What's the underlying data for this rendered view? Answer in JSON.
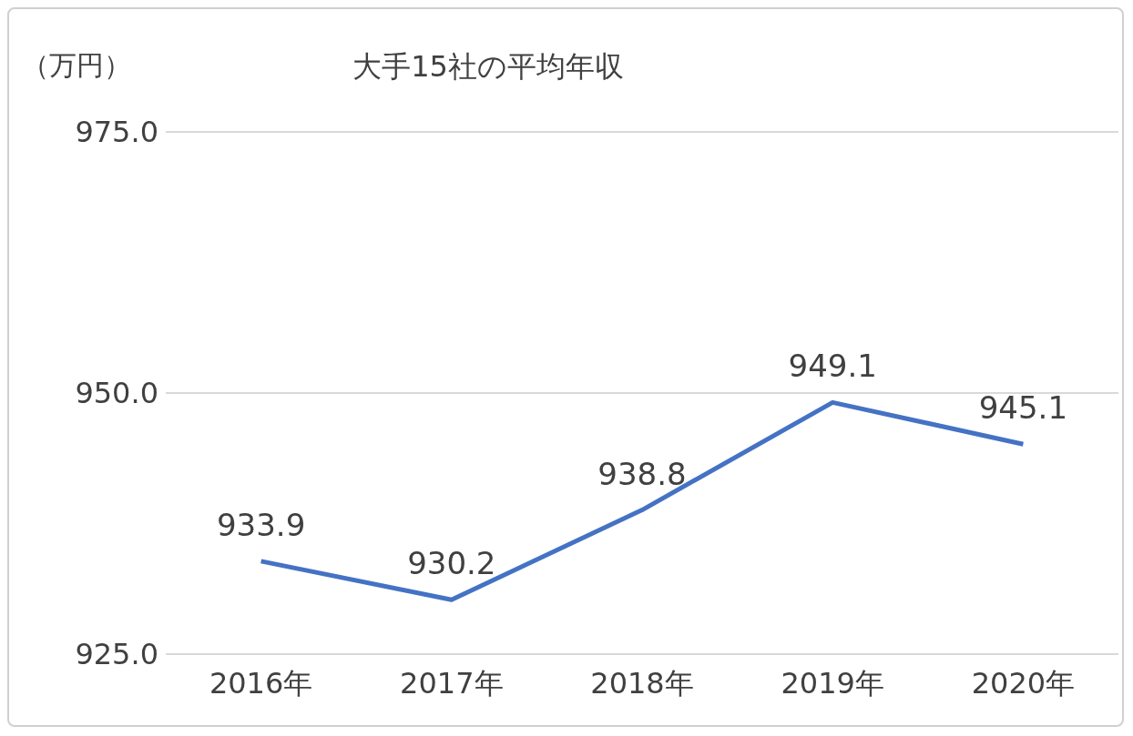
{
  "chart_data": {
    "type": "line",
    "title": "大手15社の平均年収",
    "ylabel": "（万円）",
    "categories": [
      "2016年",
      "2017年",
      "2018年",
      "2019年",
      "2020年"
    ],
    "series": [
      {
        "color": "#4472c4",
        "values": [
          933.9,
          930.2,
          938.8,
          949.1,
          945.1
        ]
      }
    ],
    "ylim": [
      925,
      975
    ],
    "yticks": [
      {
        "value": 925,
        "label": "925.0"
      },
      {
        "value": 950,
        "label": "950.0"
      },
      {
        "value": 975,
        "label": "975.0"
      }
    ],
    "grid": "y",
    "marker": "none",
    "line_style": "solid",
    "data_labels": true
  }
}
